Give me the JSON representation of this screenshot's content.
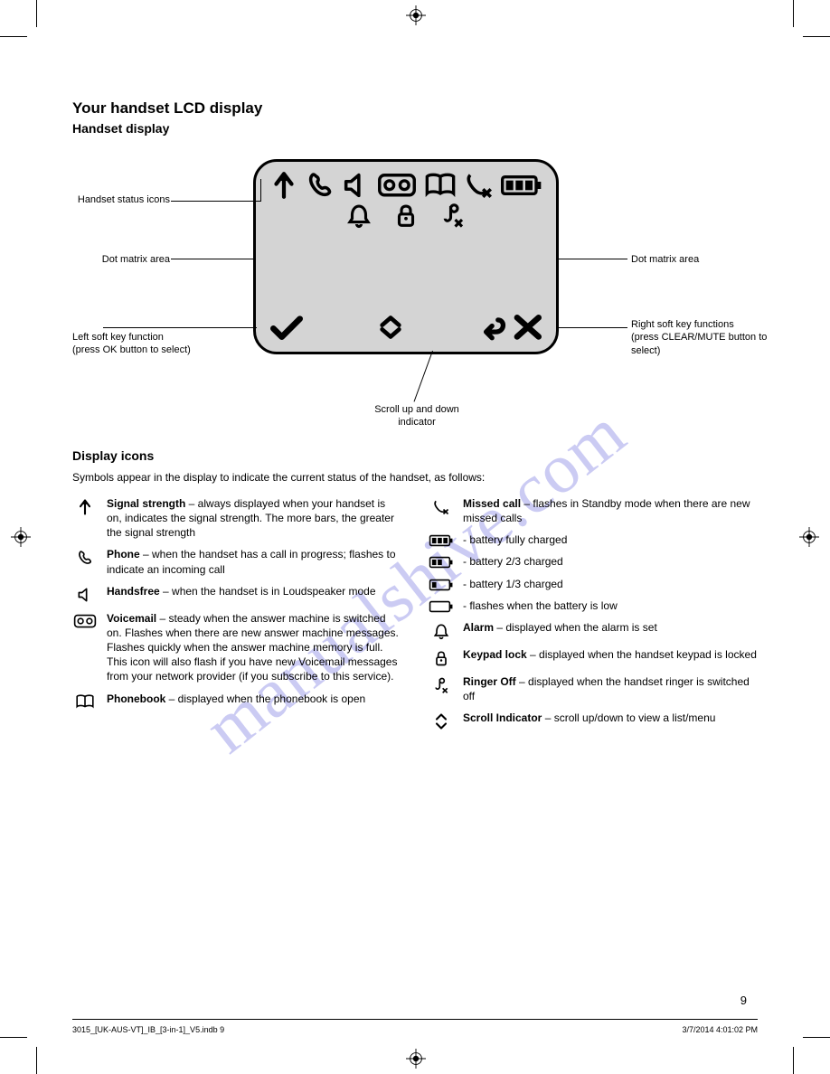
{
  "page": {
    "title": "Your handset LCD display",
    "subtitle": "Handset display",
    "intro_heading": "Display icons",
    "intro_text": "Symbols appear in the display to indicate the current status of the handset, as follows:",
    "page_number": "9"
  },
  "callouts": {
    "status": "Handset status icons",
    "dot_matrix": "Dot matrix area",
    "left_soft": {
      "l1": "Left soft key function",
      "l2": "(press OK button to select)"
    },
    "scroll": {
      "l1": "Scroll up and down",
      "l2": "indicator"
    },
    "right_soft": {
      "l1": "Right soft key functions",
      "l2": "(press CLEAR/MUTE button to select)"
    }
  },
  "icons_left": [
    {
      "icon": "signal",
      "label": "Signal strength",
      "text": " – always displayed when your handset is on, indicates the signal strength. The more bars, the greater the signal strength"
    },
    {
      "icon": "phone",
      "label": "Phone",
      "text": " – when the handset has a call in progress; flashes to indicate an incoming call"
    },
    {
      "icon": "speaker",
      "label": "Handsfree",
      "text": " – when the handset is in Loudspeaker mode"
    },
    {
      "icon": "voicemail",
      "label": "Voicemail",
      "text": " – steady when the answer machine is switched on. Flashes when there are new answer machine messages. Flashes quickly when the answer machine memory is full. This icon will also flash if you have new Voicemail messages from your network provider (if you subscribe to this service)."
    },
    {
      "icon": "phonebook",
      "label": "Phonebook",
      "text": " – displayed when the phonebook is open"
    }
  ],
  "icons_right": [
    {
      "icon": "missed",
      "label": "Missed call",
      "text": " – flashes in Standby mode when there are new missed calls"
    },
    {
      "icon": "batt3",
      "label": "",
      "text": "- battery fully charged"
    },
    {
      "icon": "batt2",
      "label": "",
      "text": "- battery 2/3 charged"
    },
    {
      "icon": "batt1",
      "label": "",
      "text": "- battery 1/3 charged"
    },
    {
      "icon": "batt0",
      "label": "",
      "text": "- flashes when the battery is low"
    },
    {
      "icon": "alarm",
      "label": "Alarm",
      "text": " – displayed when the alarm is set"
    },
    {
      "icon": "lock",
      "label": "Keypad lock",
      "text": " – displayed when the handset keypad is locked"
    },
    {
      "icon": "ringoff",
      "label": "Ringer Off",
      "text": " – displayed when the handset ringer is switched off"
    },
    {
      "icon": "updown",
      "label": "Scroll Indicator",
      "text": " – scroll up/down to view a list/menu"
    }
  ],
  "footer": {
    "file": "3015_[UK-AUS-VT]_IB_[3-in-1]_V5.indb   9",
    "date": "3/7/2014   4:01:02 PM"
  },
  "watermark": "manualshive.com",
  "colors": {
    "lcd_bg": "#d4d4d4",
    "watermark": "#b0b0ee"
  }
}
